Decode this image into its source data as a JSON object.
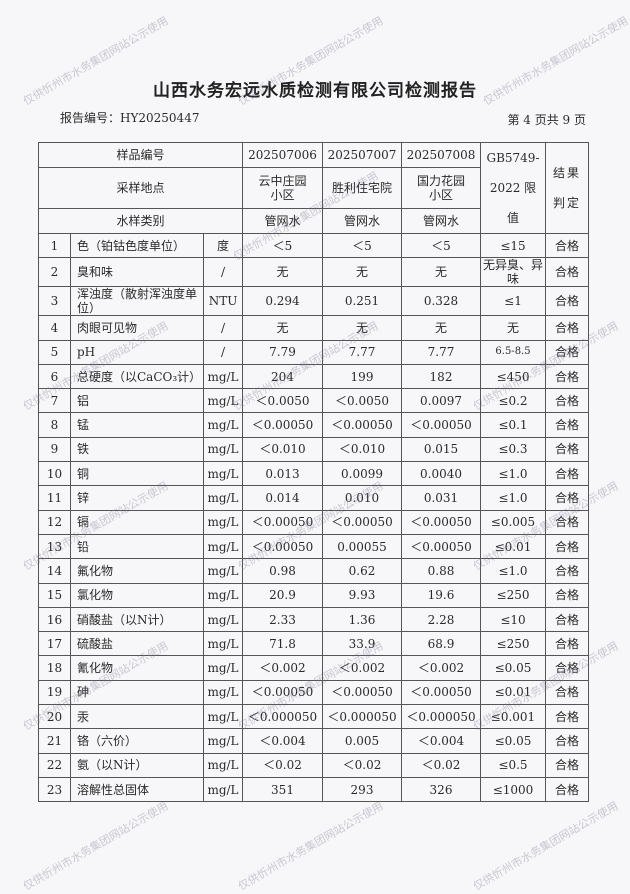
{
  "title": "山西水务宏远水质检测有限公司检测报告",
  "report_number": "报告编号：HY20250447",
  "page_info": "第 4 页共 9 页",
  "watermark": "仅供忻州市水务集团网站公示使用",
  "header": {
    "sample_no_label": "样品编号",
    "samples": [
      "202507006",
      "202507007",
      "202507008"
    ],
    "location_label": "采样地点",
    "locations": [
      "云中庄园小区",
      "胜利住宅院",
      "国力花园小区"
    ],
    "type_label": "水样类别",
    "types": [
      "管网水",
      "管网水",
      "管网水"
    ],
    "limit_label": "GB5749-2022 限值",
    "result_label": "结果判定"
  },
  "rows": [
    {
      "no": "1",
      "item": "色（铂钴色度单位）",
      "unit": "度",
      "v": [
        "＜5",
        "＜5",
        "＜5"
      ],
      "limit": "≤15",
      "result": "合格"
    },
    {
      "no": "2",
      "item": "臭和味",
      "unit": "/",
      "v": [
        "无",
        "无",
        "无"
      ],
      "limit": "无异臭、异味",
      "result": "合格"
    },
    {
      "no": "3",
      "item": "浑浊度（散射浑浊度单位）",
      "unit": "NTU",
      "v": [
        "0.294",
        "0.251",
        "0.328"
      ],
      "limit": "≤1",
      "result": "合格"
    },
    {
      "no": "4",
      "item": "肉眼可见物",
      "unit": "/",
      "v": [
        "无",
        "无",
        "无"
      ],
      "limit": "无",
      "result": "合格"
    },
    {
      "no": "5",
      "item": "pH",
      "unit": "/",
      "v": [
        "7.79",
        "7.77",
        "7.77"
      ],
      "limit": "6.5-8.5",
      "result": "合格"
    },
    {
      "no": "6",
      "item": "总硬度（以CaCO₃计）",
      "unit": "mg/L",
      "v": [
        "204",
        "199",
        "182"
      ],
      "limit": "≤450",
      "result": "合格"
    },
    {
      "no": "7",
      "item": "铝",
      "unit": "mg/L",
      "v": [
        "＜0.0050",
        "＜0.0050",
        "0.0097"
      ],
      "limit": "≤0.2",
      "result": "合格"
    },
    {
      "no": "8",
      "item": "锰",
      "unit": "mg/L",
      "v": [
        "＜0.00050",
        "＜0.00050",
        "＜0.00050"
      ],
      "limit": "≤0.1",
      "result": "合格"
    },
    {
      "no": "9",
      "item": "铁",
      "unit": "mg/L",
      "v": [
        "＜0.010",
        "＜0.010",
        "0.015"
      ],
      "limit": "≤0.3",
      "result": "合格"
    },
    {
      "no": "10",
      "item": "铜",
      "unit": "mg/L",
      "v": [
        "0.013",
        "0.0099",
        "0.0040"
      ],
      "limit": "≤1.0",
      "result": "合格"
    },
    {
      "no": "11",
      "item": "锌",
      "unit": "mg/L",
      "v": [
        "0.014",
        "0.010",
        "0.031"
      ],
      "limit": "≤1.0",
      "result": "合格"
    },
    {
      "no": "12",
      "item": "镉",
      "unit": "mg/L",
      "v": [
        "＜0.00050",
        "＜0.00050",
        "＜0.00050"
      ],
      "limit": "≤0.005",
      "result": "合格"
    },
    {
      "no": "13",
      "item": "铅",
      "unit": "mg/L",
      "v": [
        "＜0.00050",
        "0.00055",
        "＜0.00050"
      ],
      "limit": "≤0.01",
      "result": "合格"
    },
    {
      "no": "14",
      "item": "氟化物",
      "unit": "mg/L",
      "v": [
        "0.98",
        "0.62",
        "0.88"
      ],
      "limit": "≤1.0",
      "result": "合格"
    },
    {
      "no": "15",
      "item": "氯化物",
      "unit": "mg/L",
      "v": [
        "20.9",
        "9.93",
        "19.6"
      ],
      "limit": "≤250",
      "result": "合格"
    },
    {
      "no": "16",
      "item": "硝酸盐（以N计）",
      "unit": "mg/L",
      "v": [
        "2.33",
        "1.36",
        "2.28"
      ],
      "limit": "≤10",
      "result": "合格"
    },
    {
      "no": "17",
      "item": "硫酸盐",
      "unit": "mg/L",
      "v": [
        "71.8",
        "33.9",
        "68.9"
      ],
      "limit": "≤250",
      "result": "合格"
    },
    {
      "no": "18",
      "item": "氰化物",
      "unit": "mg/L",
      "v": [
        "＜0.002",
        "＜0.002",
        "＜0.002"
      ],
      "limit": "≤0.05",
      "result": "合格"
    },
    {
      "no": "19",
      "item": "砷",
      "unit": "mg/L",
      "v": [
        "＜0.00050",
        "＜0.00050",
        "＜0.00050"
      ],
      "limit": "≤0.01",
      "result": "合格"
    },
    {
      "no": "20",
      "item": "汞",
      "unit": "mg/L",
      "v": [
        "＜0.000050",
        "＜0.000050",
        "＜0.000050"
      ],
      "limit": "≤0.001",
      "result": "合格"
    },
    {
      "no": "21",
      "item": "铬（六价）",
      "unit": "mg/L",
      "v": [
        "＜0.004",
        "0.005",
        "＜0.004"
      ],
      "limit": "≤0.05",
      "result": "合格"
    },
    {
      "no": "22",
      "item": "氨（以N计）",
      "unit": "mg/L",
      "v": [
        "＜0.02",
        "＜0.02",
        "＜0.02"
      ],
      "limit": "≤0.5",
      "result": "合格"
    },
    {
      "no": "23",
      "item": "溶解性总固体",
      "unit": "mg/L",
      "v": [
        "351",
        "293",
        "326"
      ],
      "limit": "≤1000",
      "result": "合格"
    }
  ]
}
